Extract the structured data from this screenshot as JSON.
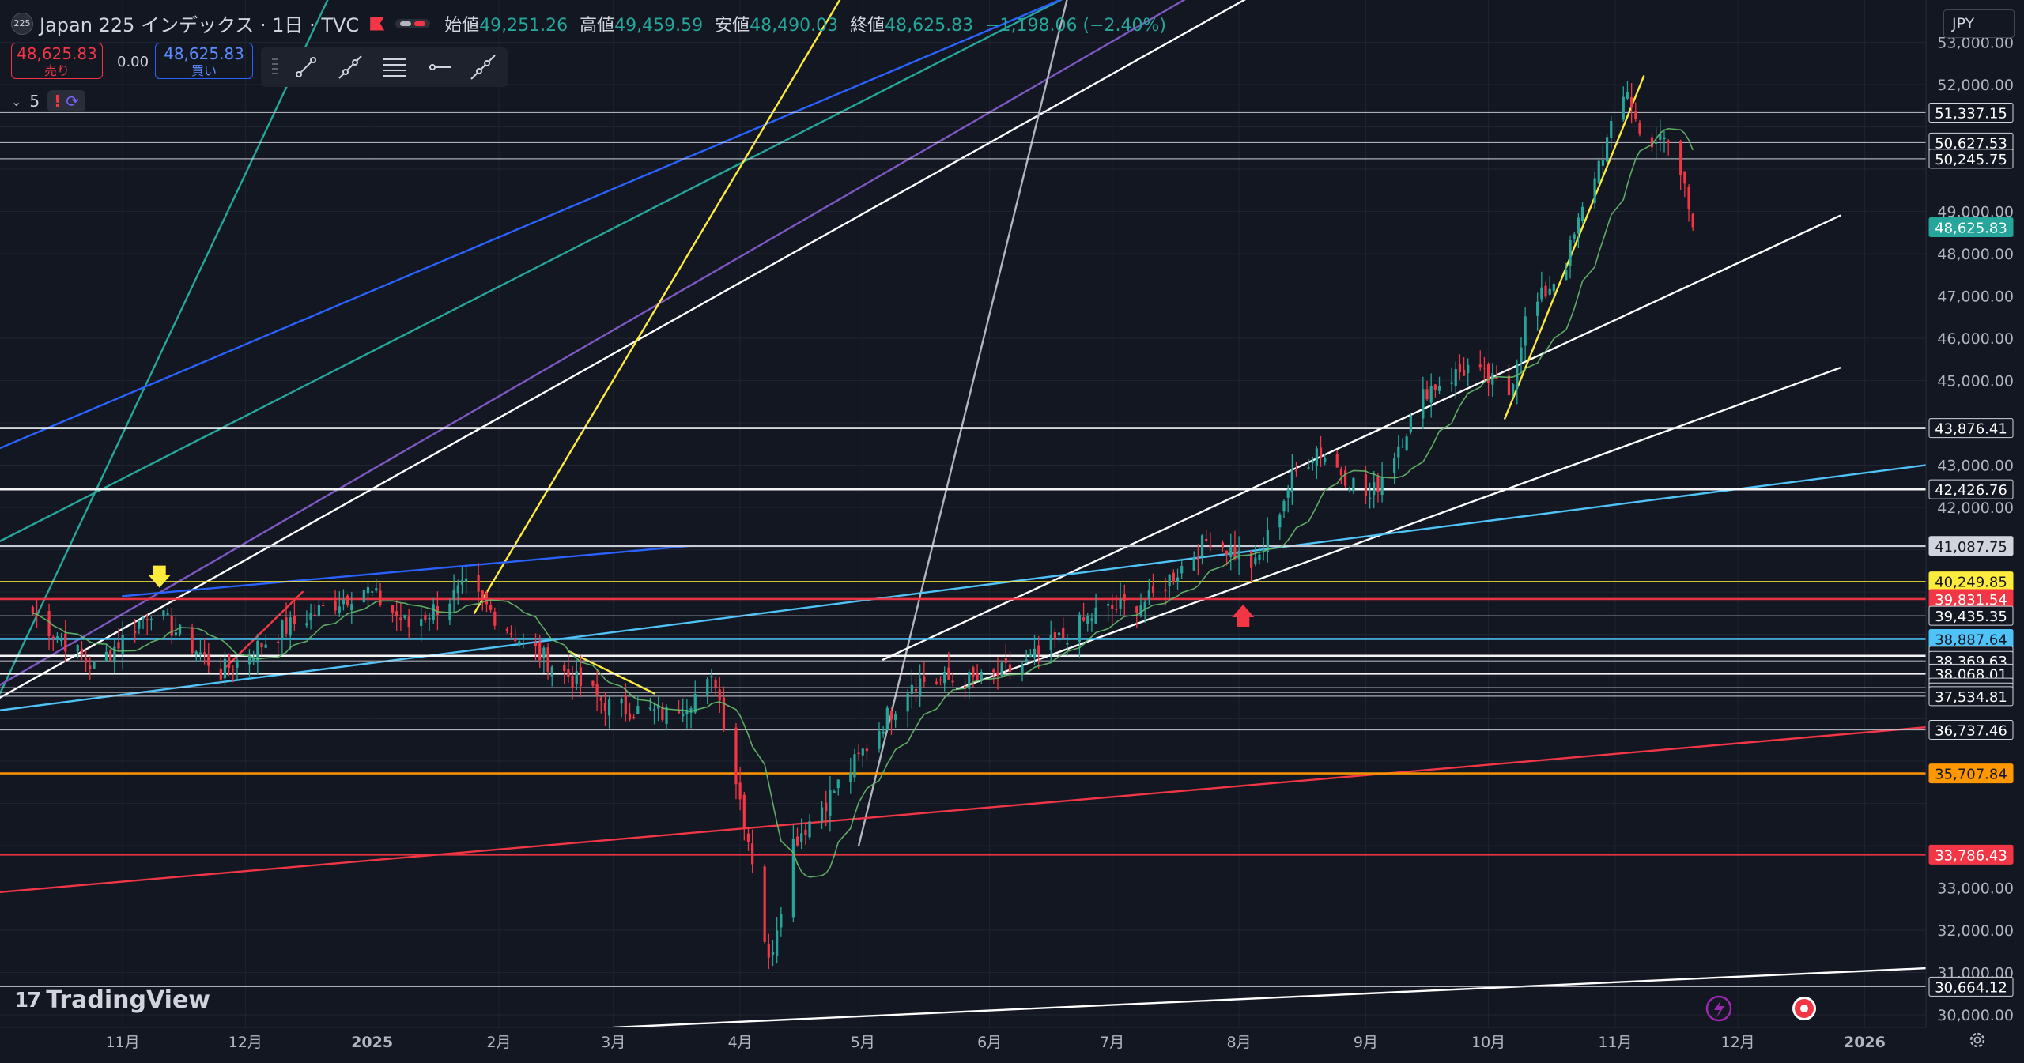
{
  "header": {
    "symbol_logo": "225",
    "title": "Japan 225 インデックス · 1日 · TVC",
    "open_label": "始値",
    "open": "49,251.26",
    "high_label": "高値",
    "high": "49,459.59",
    "low_label": "安値",
    "low": "48,490.03",
    "close_label": "終値",
    "close": "48,625.83",
    "change": "−1,198.06 (−2.40%)"
  },
  "trade": {
    "sell_price": "48,625.83",
    "sell_label": "売り",
    "spread": "0.00",
    "buy_price": "48,625.83",
    "buy_label": "買い"
  },
  "indicator_count": "5",
  "currency": "JPY",
  "brand": "TradingView",
  "colors": {
    "background": "#131722",
    "up": "#26a69a",
    "down": "#f23645",
    "grid": "#1f2430"
  },
  "icons": [
    "chevron-down-icon",
    "warning-icon",
    "sync-icon",
    "trend-line-icon",
    "ray-icon",
    "horizontal-lines-icon",
    "horizontal-ray-icon",
    "extended-line-icon",
    "grip-icon",
    "replay-icon",
    "record-icon",
    "gear-icon"
  ],
  "chart_data": {
    "type": "candlestick",
    "x_axis": {
      "tick_labels": [
        {
          "date": "2024-11-01",
          "label": "11月"
        },
        {
          "date": "2024-12-01",
          "label": "12月"
        },
        {
          "date": "2025-01-01",
          "label": "2025"
        },
        {
          "date": "2025-02-01",
          "label": "2月"
        },
        {
          "date": "2025-03-01",
          "label": "3月"
        },
        {
          "date": "2025-04-01",
          "label": "4月"
        },
        {
          "date": "2025-05-01",
          "label": "5月"
        },
        {
          "date": "2025-06-01",
          "label": "6月"
        },
        {
          "date": "2025-07-01",
          "label": "7月"
        },
        {
          "date": "2025-08-01",
          "label": "8月"
        },
        {
          "date": "2025-09-01",
          "label": "9月"
        },
        {
          "date": "2025-10-01",
          "label": "10月"
        },
        {
          "date": "2025-11-01",
          "label": "11月"
        },
        {
          "date": "2025-12-01",
          "label": "12月"
        },
        {
          "date": "2026-01-01",
          "label": "2026"
        }
      ],
      "range": [
        "2024-10-02",
        "2026-01-16"
      ]
    },
    "y_axis": {
      "range": [
        29700,
        54000
      ],
      "tick_values": [
        30000,
        31000,
        32000,
        33000,
        34000,
        35000,
        36000,
        37000,
        38000,
        39000,
        40000,
        41000,
        42000,
        43000,
        44000,
        45000,
        46000,
        47000,
        48000,
        49000,
        50000,
        51000,
        52000,
        53000
      ],
      "tick_labels": [
        "30,000.00",
        "31,000.00",
        "32,000.00",
        "33,000.00",
        "",
        "",
        "",
        "",
        "",
        "",
        "",
        "",
        "42,000.00",
        "43,000.00",
        "",
        "45,000.00",
        "46,000.00",
        "47,000.00",
        "48,000.00",
        "49,000.00",
        "",
        "",
        "52,000.00",
        "53,000.00"
      ]
    },
    "key_prices": [
      {
        "date": "2024-10-10",
        "price": 39500
      },
      {
        "date": "2024-10-25",
        "price": 38200
      },
      {
        "date": "2024-11-08",
        "price": 39600
      },
      {
        "date": "2024-11-25",
        "price": 38100
      },
      {
        "date": "2024-12-10",
        "price": 39100
      },
      {
        "date": "2024-12-30",
        "price": 40100
      },
      {
        "date": "2025-01-10",
        "price": 39200
      },
      {
        "date": "2025-01-24",
        "price": 40100
      },
      {
        "date": "2025-02-07",
        "price": 38800
      },
      {
        "date": "2025-02-28",
        "price": 37300
      },
      {
        "date": "2025-03-14",
        "price": 37100
      },
      {
        "date": "2025-03-26",
        "price": 37900
      },
      {
        "date": "2025-04-04",
        "price": 33700
      },
      {
        "date": "2025-04-08",
        "price": 31200
      },
      {
        "date": "2025-04-14",
        "price": 34100
      },
      {
        "date": "2025-04-28",
        "price": 35800
      },
      {
        "date": "2025-05-13",
        "price": 37900
      },
      {
        "date": "2025-05-30",
        "price": 37900
      },
      {
        "date": "2025-06-10",
        "price": 38300
      },
      {
        "date": "2025-06-27",
        "price": 39500
      },
      {
        "date": "2025-07-10",
        "price": 39800
      },
      {
        "date": "2025-07-25",
        "price": 41300
      },
      {
        "date": "2025-08-05",
        "price": 40600
      },
      {
        "date": "2025-08-14",
        "price": 42700
      },
      {
        "date": "2025-08-20",
        "price": 43400
      },
      {
        "date": "2025-09-02",
        "price": 42200
      },
      {
        "date": "2025-09-16",
        "price": 44800
      },
      {
        "date": "2025-09-26",
        "price": 45300
      },
      {
        "date": "2025-10-06",
        "price": 44700
      },
      {
        "date": "2025-10-10",
        "price": 46400
      },
      {
        "date": "2025-10-20",
        "price": 47800
      },
      {
        "date": "2025-10-27",
        "price": 49900
      },
      {
        "date": "2025-11-04",
        "price": 51900
      },
      {
        "date": "2025-11-07",
        "price": 50800
      },
      {
        "date": "2025-11-14",
        "price": 50600
      },
      {
        "date": "2025-11-18",
        "price": 49600
      },
      {
        "date": "2025-11-20",
        "price": 48625.83
      }
    ],
    "price_levels": [
      {
        "price": 51337.15,
        "label": "51,337.15",
        "color": "#d1d4dc",
        "style": "thin"
      },
      {
        "price": 50627.53,
        "label": "50,627.53",
        "color": "#d1d4dc",
        "style": "thin"
      },
      {
        "price": 50245.75,
        "label": "50,245.75",
        "color": "#d1d4dc",
        "style": "thin"
      },
      {
        "price": 48625.83,
        "label": "48,625.83",
        "color": "#26a69a",
        "style": "current"
      },
      {
        "price": 43876.41,
        "label": "43,876.41",
        "color": "#ffffff",
        "style": "thick"
      },
      {
        "price": 42426.76,
        "label": "42,426.76",
        "color": "#ffffff",
        "style": "thick"
      },
      {
        "price": 41087.75,
        "label": "41,087.75",
        "color": "#d1d4dc",
        "style": "thick"
      },
      {
        "price": 40249.85,
        "label": "40,249.85",
        "color": "#ffeb3b",
        "style": "thin"
      },
      {
        "price": 39831.54,
        "label": "39,831.54",
        "color": "#f23645",
        "style": "thick"
      },
      {
        "price": 39435.35,
        "label": "39,435.35",
        "color": "#d1d4dc",
        "style": "thin"
      },
      {
        "price": 38887.64,
        "label": "38,887.64",
        "color": "#4fc3f7",
        "style": "thick"
      },
      {
        "price": 38489.84,
        "label": "38,489.84",
        "color": "#ffffff",
        "style": "thick"
      },
      {
        "price": 38369.63,
        "label": "38,369.63",
        "color": "#d1d4dc",
        "style": "thin"
      },
      {
        "price": 38068.01,
        "label": "38,068.01",
        "color": "#ffffff",
        "style": "thick"
      },
      {
        "price": 37736.04,
        "label": "37,736.04",
        "color": "#d1d4dc",
        "style": "thin"
      },
      {
        "price": 37621.77,
        "label": "37,621.77",
        "color": "#d1d4dc",
        "style": "thin"
      },
      {
        "price": 37534.81,
        "label": "37,534.81",
        "color": "#d1d4dc",
        "style": "thin"
      },
      {
        "price": 36737.46,
        "label": "36,737.46",
        "color": "#d1d4dc",
        "style": "thin"
      },
      {
        "price": 35707.84,
        "label": "35,707.84",
        "color": "#ff9800",
        "style": "thick"
      },
      {
        "price": 33786.43,
        "label": "33,786.43",
        "color": "#f23645",
        "style": "thick"
      },
      {
        "price": 30664.12,
        "label": "30,664.12",
        "color": "#d1d4dc",
        "style": "thin"
      }
    ],
    "trend_lines": [
      {
        "color": "#26a69a",
        "points": [
          [
            "2024-10-02",
            41200
          ],
          [
            "2025-10-18",
            60000
          ]
        ]
      },
      {
        "color": "#26a69a",
        "points": [
          [
            "2024-10-02",
            37600
          ],
          [
            "2024-12-26",
            55000
          ]
        ]
      },
      {
        "color": "#2962ff",
        "points": [
          [
            "2024-10-02",
            43400
          ],
          [
            "2025-09-24",
            58000
          ]
        ]
      },
      {
        "color": "#7e57c2",
        "points": [
          [
            "2024-10-02",
            37800
          ],
          [
            "2025-09-28",
            58000
          ]
        ]
      },
      {
        "color": "#ffffff",
        "points": [
          [
            "2024-10-02",
            37500
          ],
          [
            "2025-10-15",
            58000
          ]
        ]
      },
      {
        "color": "#ffeb3b",
        "points": [
          [
            "2025-01-26",
            39500
          ],
          [
            "2025-05-20",
            58000
          ]
        ]
      },
      {
        "color": "#b2b5be",
        "points": [
          [
            "2025-04-30",
            34000
          ],
          [
            "2025-06-25",
            56000
          ]
        ]
      },
      {
        "color": "#2962ff",
        "points": [
          [
            "2024-11-01",
            39900
          ],
          [
            "2025-03-21",
            41100
          ]
        ]
      },
      {
        "color": "#ffffff",
        "points": [
          [
            "2025-05-06",
            38400
          ],
          [
            "2025-12-26",
            48900
          ]
        ]
      },
      {
        "color": "#ffffff",
        "points": [
          [
            "2025-05-24",
            37700
          ],
          [
            "2025-12-26",
            45300
          ]
        ]
      },
      {
        "color": "#4fc3f7",
        "points": [
          [
            "2024-10-02",
            37200
          ],
          [
            "2026-01-16",
            43000
          ]
        ]
      },
      {
        "color": "#f23645",
        "points": [
          [
            "2024-10-02",
            32900
          ],
          [
            "2026-01-16",
            36800
          ]
        ]
      },
      {
        "color": "#ffffff",
        "points": [
          [
            "2025-03-01",
            29700
          ],
          [
            "2026-01-16",
            31100
          ]
        ]
      },
      {
        "color": "#ffeb3b",
        "points": [
          [
            "2025-10-05",
            44100
          ],
          [
            "2025-11-08",
            52200
          ]
        ]
      },
      {
        "color": "#f23645",
        "points": [
          [
            "2024-11-26",
            38200
          ],
          [
            "2024-12-15",
            40000
          ]
        ]
      },
      {
        "color": "#ffeb3b",
        "points": [
          [
            "2025-02-18",
            38600
          ],
          [
            "2025-03-11",
            37600
          ]
        ]
      }
    ],
    "markers": [
      {
        "type": "arrow-down",
        "date": "2024-11-10",
        "price": 40100,
        "color": "#ffeb3b"
      },
      {
        "type": "arrow-up",
        "date": "2025-08-02",
        "price": 39700,
        "color": "#f23645"
      }
    ]
  }
}
